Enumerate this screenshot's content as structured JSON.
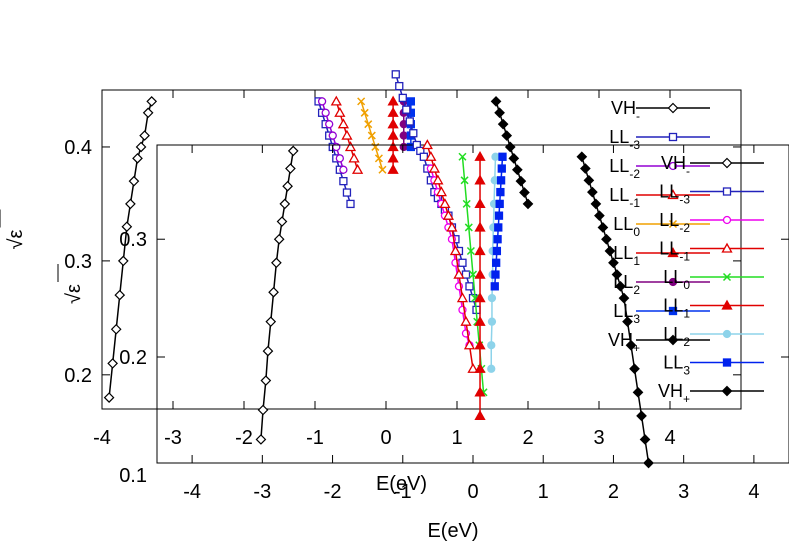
{
  "chart_data": [
    {
      "type": "line",
      "title": "",
      "xlabel": "E(eV)",
      "ylabel": "√ε",
      "xlim": [
        -4,
        5
      ],
      "ylim": [
        0.17,
        0.45
      ],
      "x_ticks": [
        "-4",
        "-3",
        "-2",
        "-1",
        "0",
        "1",
        "2",
        "3",
        "4"
      ],
      "y_ticks": [
        "0.1",
        "0.2",
        "0.3",
        "0.4"
      ],
      "legend_position": "top-right",
      "series": [
        {
          "name": "VH-",
          "label": "VH",
          "sub": "-",
          "color": "#000000",
          "marker": "diamond-open",
          "x": [
            -3.9,
            -3.85,
            -3.8,
            -3.75,
            -3.7,
            -3.65,
            -3.6,
            -3.55,
            -3.5,
            -3.45,
            -3.4,
            -3.35,
            -3.3
          ],
          "y": [
            0.18,
            0.21,
            0.24,
            0.27,
            0.3,
            0.33,
            0.35,
            0.37,
            0.39,
            0.4,
            0.41,
            0.43,
            0.44
          ]
        },
        {
          "name": "LL-3",
          "label": "LL",
          "sub": "-3",
          "color": "#2222bb",
          "marker": "square-open",
          "x": [
            -0.95,
            -0.9,
            -0.85,
            -0.8,
            -0.75,
            -0.7,
            -0.65,
            -0.6,
            -0.55,
            -0.5
          ],
          "y": [
            0.44,
            0.43,
            0.42,
            0.41,
            0.4,
            0.39,
            0.38,
            0.37,
            0.36,
            0.35
          ]
        },
        {
          "name": "LL-2",
          "label": "LL",
          "sub": "-2",
          "color": "#9400d3",
          "marker": "circle-open",
          "x": [
            -0.9,
            -0.85,
            -0.8,
            -0.75,
            -0.7,
            -0.65,
            -0.6
          ],
          "y": [
            0.44,
            0.43,
            0.42,
            0.41,
            0.4,
            0.39,
            0.38
          ]
        },
        {
          "name": "LL-1",
          "label": "LL",
          "sub": "-1",
          "color": "#e00000",
          "marker": "triangle-open",
          "x": [
            -0.7,
            -0.65,
            -0.6,
            -0.55,
            -0.5,
            -0.45,
            -0.4
          ],
          "y": [
            0.44,
            0.43,
            0.42,
            0.41,
            0.4,
            0.39,
            0.38
          ]
        },
        {
          "name": "LL0",
          "label": "LL",
          "sub": "0",
          "color": "#f0a000",
          "marker": "cross",
          "x": [
            -0.35,
            -0.3,
            -0.25,
            -0.2,
            -0.15,
            -0.1,
            -0.05
          ],
          "y": [
            0.44,
            0.43,
            0.42,
            0.41,
            0.4,
            0.39,
            0.38
          ]
        },
        {
          "name": "LL1",
          "label": "LL",
          "sub": "1",
          "color": "#e00000",
          "marker": "triangle-filled",
          "x": [
            0.1,
            0.1,
            0.1,
            0.1,
            0.1,
            0.1,
            0.1
          ],
          "y": [
            0.44,
            0.43,
            0.42,
            0.41,
            0.4,
            0.39,
            0.38
          ]
        },
        {
          "name": "LL2",
          "label": "LL",
          "sub": "2",
          "color": "#800080",
          "marker": "circle-filled",
          "x": [
            0.25,
            0.25,
            0.25,
            0.25,
            0.25
          ],
          "y": [
            0.44,
            0.43,
            0.42,
            0.41,
            0.4
          ]
        },
        {
          "name": "LL3",
          "label": "LL",
          "sub": "3",
          "color": "#0033ee",
          "marker": "square-filled",
          "x": [
            0.35,
            0.35,
            0.35,
            0.35,
            0.35
          ],
          "y": [
            0.44,
            0.43,
            0.42,
            0.41,
            0.4
          ]
        },
        {
          "name": "VH+",
          "label": "VH",
          "sub": "+",
          "color": "#000000",
          "marker": "diamond-filled",
          "x": [
            1.55,
            1.6,
            1.65,
            1.7,
            1.75,
            1.8,
            1.85,
            1.9,
            1.95,
            2.0
          ],
          "y": [
            0.44,
            0.43,
            0.42,
            0.41,
            0.4,
            0.39,
            0.38,
            0.37,
            0.36,
            0.35
          ]
        }
      ]
    },
    {
      "type": "line",
      "title": "",
      "xlabel": "E(eV)",
      "ylabel": "√ε",
      "xlim": [
        -4.5,
        4.5
      ],
      "ylim": [
        0.11,
        0.38
      ],
      "x_ticks": [
        "-4",
        "-3",
        "-2",
        "-1",
        "0",
        "1",
        "2",
        "3",
        "4"
      ],
      "y_ticks": [
        "0.1",
        "0.2",
        "0.3",
        "0.4"
      ],
      "legend_position": "top-right",
      "series": [
        {
          "name": "VH-",
          "label": "VH",
          "sub": "-",
          "color": "#000000",
          "marker": "diamond-open",
          "x": [
            -3.02,
            -2.99,
            -2.95,
            -2.92,
            -2.88,
            -2.84,
            -2.8,
            -2.76,
            -2.72,
            -2.68,
            -2.64,
            -2.6,
            -2.56
          ],
          "y": [
            0.13,
            0.155,
            0.18,
            0.205,
            0.23,
            0.255,
            0.28,
            0.3,
            0.315,
            0.33,
            0.345,
            0.36,
            0.375
          ]
        },
        {
          "name": "LL-3",
          "label": "LL",
          "sub": "-3",
          "color": "#2222bb",
          "marker": "square-open",
          "x": [
            -1.1,
            -1.05,
            -1.0,
            -0.95,
            -0.9,
            -0.85,
            -0.8,
            -0.75,
            -0.7,
            -0.65,
            -0.6,
            -0.55,
            -0.5,
            -0.45,
            -0.4,
            -0.35,
            -0.3,
            -0.25,
            -0.2,
            -0.15,
            -0.1,
            -0.05,
            0.0,
            0.05
          ],
          "y": [
            0.44,
            0.43,
            0.42,
            0.41,
            0.4,
            0.39,
            0.38,
            0.375,
            0.37,
            0.36,
            0.35,
            0.34,
            0.335,
            0.33,
            0.325,
            0.32,
            0.31,
            0.3,
            0.29,
            0.28,
            0.27,
            0.26,
            0.25,
            0.24
          ]
        },
        {
          "name": "LL-2",
          "label": "LL",
          "sub": "-2",
          "color": "#ee00ee",
          "marker": "circle-open",
          "x": [
            -0.6,
            -0.55,
            -0.5,
            -0.45,
            -0.4,
            -0.35,
            -0.3,
            -0.25,
            -0.2,
            -0.15,
            -0.1,
            -0.05
          ],
          "y": [
            0.36,
            0.35,
            0.34,
            0.33,
            0.32,
            0.31,
            0.3,
            0.28,
            0.26,
            0.24,
            0.22,
            0.21
          ]
        },
        {
          "name": "LL-1",
          "label": "LL",
          "sub": "-1",
          "color": "#e00000",
          "marker": "triangle-open",
          "x": [
            -0.65,
            -0.6,
            -0.55,
            -0.5,
            -0.45,
            -0.4,
            -0.35,
            -0.3,
            -0.25,
            -0.2,
            -0.15,
            -0.1,
            -0.05,
            0.0
          ],
          "y": [
            0.38,
            0.37,
            0.36,
            0.35,
            0.34,
            0.33,
            0.32,
            0.31,
            0.29,
            0.27,
            0.25,
            0.23,
            0.21,
            0.19
          ]
        },
        {
          "name": "LL0",
          "label": "LL",
          "sub": "0",
          "color": "#22dd22",
          "marker": "cross",
          "x": [
            -0.15,
            -0.12,
            -0.09,
            -0.06,
            -0.03,
            0.0,
            0.03,
            0.06,
            0.09,
            0.12,
            0.15
          ],
          "y": [
            0.37,
            0.35,
            0.33,
            0.31,
            0.29,
            0.27,
            0.25,
            0.23,
            0.21,
            0.19,
            0.17
          ]
        },
        {
          "name": "LL1",
          "label": "LL",
          "sub": "1",
          "color": "#e00000",
          "marker": "triangle-filled",
          "x": [
            0.1,
            0.1,
            0.1,
            0.1,
            0.1,
            0.1,
            0.1,
            0.1,
            0.1,
            0.1,
            0.1,
            0.1
          ],
          "y": [
            0.37,
            0.35,
            0.33,
            0.31,
            0.29,
            0.27,
            0.25,
            0.23,
            0.21,
            0.19,
            0.17,
            0.15
          ]
        },
        {
          "name": "LL2",
          "label": "LL",
          "sub": "2",
          "color": "#8dd3ea",
          "marker": "circle-filled",
          "x": [
            0.32,
            0.31,
            0.3,
            0.29,
            0.28,
            0.28,
            0.27,
            0.27,
            0.26,
            0.26
          ],
          "y": [
            0.37,
            0.35,
            0.33,
            0.31,
            0.29,
            0.27,
            0.25,
            0.23,
            0.21,
            0.19
          ]
        },
        {
          "name": "LL3",
          "label": "LL",
          "sub": "3",
          "color": "#0022ee",
          "marker": "square-filled",
          "x": [
            0.42,
            0.41,
            0.4,
            0.39,
            0.38,
            0.37,
            0.36,
            0.35,
            0.34,
            0.33,
            0.32,
            0.31
          ],
          "y": [
            0.37,
            0.36,
            0.35,
            0.34,
            0.33,
            0.32,
            0.31,
            0.3,
            0.29,
            0.28,
            0.27,
            0.26
          ]
        },
        {
          "name": "VH+",
          "label": "VH",
          "sub": "+",
          "color": "#000000",
          "marker": "diamond-filled",
          "x": [
            1.55,
            1.6,
            1.65,
            1.7,
            1.75,
            1.8,
            1.85,
            1.9,
            1.95,
            2.0,
            2.05,
            2.1,
            2.15,
            2.2,
            2.25,
            2.3,
            2.35,
            2.4,
            2.45,
            2.5
          ],
          "y": [
            0.37,
            0.36,
            0.35,
            0.34,
            0.33,
            0.32,
            0.31,
            0.3,
            0.29,
            0.28,
            0.27,
            0.26,
            0.25,
            0.23,
            0.21,
            0.19,
            0.17,
            0.15,
            0.13,
            0.11
          ]
        }
      ]
    }
  ]
}
